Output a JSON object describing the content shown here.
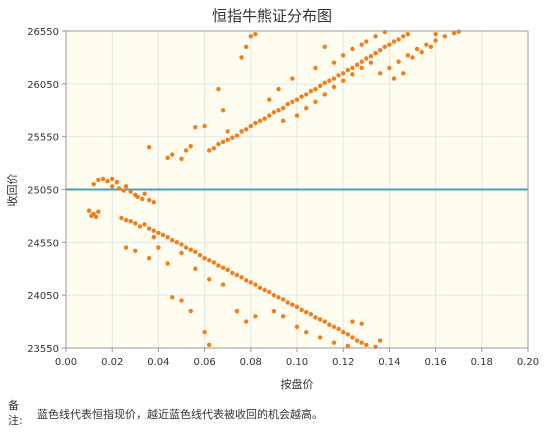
{
  "chart_data": {
    "type": "scatter",
    "title": "恒指牛熊证分布图",
    "xlabel": "按盘价",
    "ylabel": "收回价",
    "xlim": [
      0,
      0.2
    ],
    "ylim": [
      23550,
      26550
    ],
    "x_ticks": [
      "0.00",
      "0.02",
      "0.04",
      "0.06",
      "0.08",
      "0.10",
      "0.12",
      "0.14",
      "0.16",
      "0.18",
      "0.20"
    ],
    "y_ticks": [
      "23550",
      "24050",
      "24550",
      "25050",
      "25550",
      "26050",
      "26550"
    ],
    "reference_line": {
      "y": 25050,
      "color": "#3aa8c1"
    },
    "point_color": "#f07d1e",
    "background": "#fffdf0",
    "grid": true,
    "legend": "none",
    "series": [
      {
        "points": [
          [
            0.01,
            24850
          ],
          [
            0.011,
            24800
          ],
          [
            0.012,
            24820
          ],
          [
            0.013,
            24790
          ],
          [
            0.014,
            24840
          ],
          [
            0.012,
            25100
          ],
          [
            0.014,
            25140
          ],
          [
            0.016,
            25150
          ],
          [
            0.018,
            25130
          ],
          [
            0.02,
            25150
          ],
          [
            0.022,
            25120
          ],
          [
            0.02,
            25080
          ],
          [
            0.023,
            25060
          ],
          [
            0.025,
            25040
          ],
          [
            0.026,
            25080
          ],
          [
            0.028,
            25030
          ],
          [
            0.03,
            25000
          ],
          [
            0.031,
            24980
          ],
          [
            0.033,
            24960
          ],
          [
            0.034,
            25010
          ],
          [
            0.036,
            24950
          ],
          [
            0.038,
            24930
          ],
          [
            0.024,
            24780
          ],
          [
            0.026,
            24760
          ],
          [
            0.028,
            24750
          ],
          [
            0.03,
            24730
          ],
          [
            0.032,
            24700
          ],
          [
            0.034,
            24720
          ],
          [
            0.036,
            24680
          ],
          [
            0.038,
            24660
          ],
          [
            0.04,
            24640
          ],
          [
            0.042,
            24620
          ],
          [
            0.044,
            24600
          ],
          [
            0.046,
            24570
          ],
          [
            0.048,
            24550
          ],
          [
            0.05,
            24530
          ],
          [
            0.052,
            24500
          ],
          [
            0.054,
            24480
          ],
          [
            0.056,
            24460
          ],
          [
            0.058,
            24430
          ],
          [
            0.06,
            24400
          ],
          [
            0.062,
            24380
          ],
          [
            0.064,
            24360
          ],
          [
            0.066,
            24330
          ],
          [
            0.068,
            24310
          ],
          [
            0.07,
            24290
          ],
          [
            0.072,
            24260
          ],
          [
            0.074,
            24240
          ],
          [
            0.076,
            24220
          ],
          [
            0.078,
            24190
          ],
          [
            0.08,
            24170
          ],
          [
            0.082,
            24150
          ],
          [
            0.084,
            24120
          ],
          [
            0.086,
            24100
          ],
          [
            0.088,
            24080
          ],
          [
            0.09,
            24050
          ],
          [
            0.092,
            24030
          ],
          [
            0.094,
            24010
          ],
          [
            0.096,
            23980
          ],
          [
            0.098,
            23960
          ],
          [
            0.1,
            23940
          ],
          [
            0.102,
            23910
          ],
          [
            0.104,
            23890
          ],
          [
            0.106,
            23870
          ],
          [
            0.108,
            23840
          ],
          [
            0.11,
            23820
          ],
          [
            0.112,
            23800
          ],
          [
            0.114,
            23770
          ],
          [
            0.116,
            23750
          ],
          [
            0.118,
            23730
          ],
          [
            0.12,
            23700
          ],
          [
            0.122,
            23680
          ],
          [
            0.124,
            23650
          ],
          [
            0.126,
            23620
          ],
          [
            0.128,
            23600
          ],
          [
            0.026,
            24500
          ],
          [
            0.03,
            24470
          ],
          [
            0.036,
            24400
          ],
          [
            0.038,
            24600
          ],
          [
            0.04,
            24500
          ],
          [
            0.044,
            24350
          ],
          [
            0.05,
            24450
          ],
          [
            0.056,
            24300
          ],
          [
            0.062,
            24200
          ],
          [
            0.068,
            24150
          ],
          [
            0.046,
            24030
          ],
          [
            0.05,
            24000
          ],
          [
            0.054,
            23900
          ],
          [
            0.06,
            23700
          ],
          [
            0.062,
            23580
          ],
          [
            0.074,
            23900
          ],
          [
            0.078,
            23800
          ],
          [
            0.082,
            23850
          ],
          [
            0.09,
            23900
          ],
          [
            0.094,
            23850
          ],
          [
            0.1,
            23750
          ],
          [
            0.104,
            23700
          ],
          [
            0.11,
            23650
          ],
          [
            0.116,
            23600
          ],
          [
            0.122,
            23570
          ],
          [
            0.13,
            23580
          ],
          [
            0.134,
            23560
          ],
          [
            0.136,
            23620
          ],
          [
            0.128,
            23780
          ],
          [
            0.124,
            23800
          ],
          [
            0.036,
            25450
          ],
          [
            0.044,
            25350
          ],
          [
            0.046,
            25380
          ],
          [
            0.05,
            25340
          ],
          [
            0.052,
            25420
          ],
          [
            0.054,
            25460
          ],
          [
            0.056,
            25640
          ],
          [
            0.06,
            25650
          ],
          [
            0.062,
            25420
          ],
          [
            0.064,
            25440
          ],
          [
            0.066,
            25480
          ],
          [
            0.068,
            25500
          ],
          [
            0.07,
            25520
          ],
          [
            0.072,
            25540
          ],
          [
            0.074,
            25560
          ],
          [
            0.076,
            25600
          ],
          [
            0.078,
            25620
          ],
          [
            0.08,
            25650
          ],
          [
            0.082,
            25680
          ],
          [
            0.084,
            25700
          ],
          [
            0.086,
            25720
          ],
          [
            0.088,
            25750
          ],
          [
            0.09,
            25780
          ],
          [
            0.092,
            25800
          ],
          [
            0.094,
            25820
          ],
          [
            0.096,
            25860
          ],
          [
            0.098,
            25880
          ],
          [
            0.1,
            25900
          ],
          [
            0.102,
            25930
          ],
          [
            0.104,
            25950
          ],
          [
            0.106,
            25980
          ],
          [
            0.108,
            26000
          ],
          [
            0.11,
            26030
          ],
          [
            0.112,
            26060
          ],
          [
            0.114,
            26080
          ],
          [
            0.116,
            26100
          ],
          [
            0.118,
            26130
          ],
          [
            0.12,
            26150
          ],
          [
            0.122,
            26180
          ],
          [
            0.124,
            26200
          ],
          [
            0.126,
            26230
          ],
          [
            0.128,
            26260
          ],
          [
            0.13,
            26290
          ],
          [
            0.132,
            26310
          ],
          [
            0.134,
            26340
          ],
          [
            0.136,
            26370
          ],
          [
            0.138,
            26400
          ],
          [
            0.14,
            26420
          ],
          [
            0.142,
            26450
          ],
          [
            0.144,
            26470
          ],
          [
            0.146,
            26500
          ],
          [
            0.148,
            26520
          ],
          [
            0.066,
            26000
          ],
          [
            0.068,
            25800
          ],
          [
            0.07,
            25600
          ],
          [
            0.076,
            26300
          ],
          [
            0.078,
            26400
          ],
          [
            0.08,
            26500
          ],
          [
            0.082,
            26520
          ],
          [
            0.088,
            25900
          ],
          [
            0.092,
            26000
          ],
          [
            0.098,
            26100
          ],
          [
            0.094,
            25700
          ],
          [
            0.1,
            25750
          ],
          [
            0.104,
            25820
          ],
          [
            0.108,
            25880
          ],
          [
            0.112,
            25950
          ],
          [
            0.116,
            26020
          ],
          [
            0.12,
            26080
          ],
          [
            0.124,
            26140
          ],
          [
            0.128,
            26200
          ],
          [
            0.132,
            26250
          ],
          [
            0.136,
            26150
          ],
          [
            0.14,
            26200
          ],
          [
            0.144,
            26260
          ],
          [
            0.148,
            26320
          ],
          [
            0.152,
            26380
          ],
          [
            0.156,
            26420
          ],
          [
            0.16,
            26460
          ],
          [
            0.164,
            26500
          ],
          [
            0.168,
            26530
          ],
          [
            0.17,
            26545
          ],
          [
            0.13,
            26450
          ],
          [
            0.134,
            26500
          ],
          [
            0.138,
            26540
          ],
          [
            0.112,
            26400
          ],
          [
            0.108,
            26200
          ],
          [
            0.12,
            26320
          ],
          [
            0.124,
            26380
          ],
          [
            0.128,
            26420
          ],
          [
            0.116,
            26250
          ],
          [
            0.15,
            26300
          ],
          [
            0.154,
            26350
          ],
          [
            0.158,
            26400
          ],
          [
            0.16,
            26520
          ],
          [
            0.142,
            26100
          ],
          [
            0.146,
            26150
          ]
        ]
      }
    ]
  },
  "note": {
    "label": "备注:",
    "text": "蓝色线代表恒指现价，越近蓝色线代表被收回的机会越高。"
  }
}
